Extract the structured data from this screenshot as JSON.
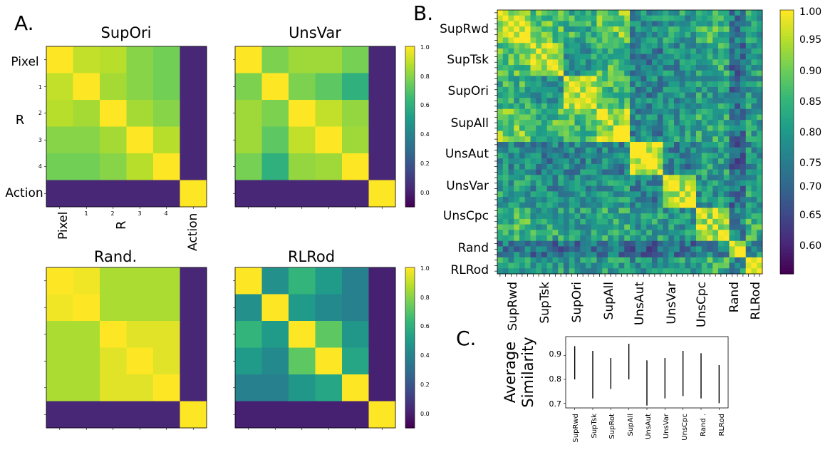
{
  "figure": {
    "panel_a_label": "A.",
    "panel_b_label": "B.",
    "panel_c_label": "C."
  },
  "colors": {
    "viridis": [
      "#440154",
      "#482878",
      "#3e4989",
      "#31688e",
      "#26828e",
      "#1f9e89",
      "#35b779",
      "#6ece58",
      "#b5de2b",
      "#fde725"
    ]
  },
  "chart_data": [
    {
      "id": "supori",
      "type": "heatmap",
      "title": "SupOri",
      "ytick_labels": [
        "Pixel",
        "1",
        "2",
        "3",
        "4",
        "Action"
      ],
      "xtick_labels": [
        "Pixel",
        "1",
        "2",
        "3",
        "4",
        "Action"
      ],
      "ylabel": "R",
      "xlabel": "R",
      "matrix": [
        [
          1.0,
          0.9,
          0.88,
          0.8,
          0.76,
          0.02
        ],
        [
          0.9,
          1.0,
          0.85,
          0.8,
          0.76,
          0.02
        ],
        [
          0.88,
          0.85,
          1.0,
          0.85,
          0.8,
          0.02
        ],
        [
          0.8,
          0.8,
          0.85,
          1.0,
          0.88,
          0.02
        ],
        [
          0.76,
          0.76,
          0.8,
          0.88,
          1.0,
          0.02
        ],
        [
          0.02,
          0.02,
          0.02,
          0.02,
          0.02,
          1.0
        ]
      ],
      "zlim": [
        -0.1,
        1.0
      ]
    },
    {
      "id": "unsvar",
      "type": "heatmap",
      "title": "UnsVar",
      "matrix": [
        [
          1.0,
          0.78,
          0.84,
          0.84,
          0.77,
          0.02
        ],
        [
          0.78,
          1.0,
          0.78,
          0.72,
          0.6,
          0.02
        ],
        [
          0.84,
          0.78,
          1.0,
          0.9,
          0.82,
          0.02
        ],
        [
          0.84,
          0.72,
          0.9,
          1.0,
          0.84,
          0.02
        ],
        [
          0.77,
          0.6,
          0.82,
          0.84,
          1.0,
          0.02
        ],
        [
          0.02,
          0.02,
          0.02,
          0.02,
          0.02,
          1.0
        ]
      ],
      "colorbar_ticks": [
        "1.0",
        "0.8",
        "0.6",
        "0.4",
        "0.2",
        "0.0"
      ],
      "zlim": [
        -0.1,
        1.0
      ]
    },
    {
      "id": "rand",
      "type": "heatmap",
      "title": "Rand.",
      "matrix": [
        [
          1.0,
          0.98,
          0.86,
          0.86,
          0.86,
          0.02
        ],
        [
          0.98,
          1.0,
          0.86,
          0.86,
          0.86,
          0.02
        ],
        [
          0.86,
          0.86,
          1.0,
          0.95,
          0.95,
          0.02
        ],
        [
          0.86,
          0.86,
          0.95,
          1.0,
          0.95,
          0.02
        ],
        [
          0.86,
          0.86,
          0.95,
          0.95,
          1.0,
          0.02
        ],
        [
          0.02,
          0.02,
          0.02,
          0.02,
          0.02,
          1.0
        ]
      ],
      "zlim": [
        -0.1,
        1.0
      ]
    },
    {
      "id": "rlrod",
      "type": "heatmap",
      "title": "RLRod",
      "matrix": [
        [
          1.0,
          0.45,
          0.62,
          0.5,
          0.38,
          0.0
        ],
        [
          0.45,
          1.0,
          0.5,
          0.42,
          0.38,
          0.0
        ],
        [
          0.62,
          0.5,
          1.0,
          0.72,
          0.48,
          0.0
        ],
        [
          0.5,
          0.42,
          0.72,
          1.0,
          0.55,
          0.0
        ],
        [
          0.38,
          0.38,
          0.48,
          0.55,
          1.0,
          0.0
        ],
        [
          0.0,
          0.0,
          0.0,
          0.0,
          0.0,
          1.0
        ]
      ],
      "colorbar_ticks": [
        "1.0",
        "0.8",
        "0.6",
        "0.4",
        "0.2",
        "0.0"
      ],
      "zlim": [
        -0.1,
        1.0
      ]
    },
    {
      "id": "cross",
      "type": "heatmap",
      "title": "",
      "groups": [
        "SupRwd",
        "SupTsk",
        "SupOri",
        "SupAll",
        "UnsAut",
        "UnsVar",
        "UnsCpc",
        "Rand",
        "RLRod"
      ],
      "group_sizes": [
        6,
        6,
        6,
        6,
        6,
        6,
        6,
        3,
        3
      ],
      "group_base": [
        [
          0.95,
          0.88,
          0.84,
          0.9,
          0.77,
          0.8,
          0.85,
          0.74,
          0.82
        ],
        [
          0.88,
          0.95,
          0.8,
          0.86,
          0.75,
          0.77,
          0.82,
          0.72,
          0.8
        ],
        [
          0.84,
          0.8,
          0.96,
          0.86,
          0.76,
          0.78,
          0.8,
          0.73,
          0.79
        ],
        [
          0.9,
          0.86,
          0.86,
          0.95,
          0.76,
          0.79,
          0.83,
          0.73,
          0.81
        ],
        [
          0.77,
          0.75,
          0.76,
          0.76,
          0.98,
          0.75,
          0.8,
          0.7,
          0.78
        ],
        [
          0.8,
          0.77,
          0.78,
          0.79,
          0.75,
          0.97,
          0.79,
          0.72,
          0.8
        ],
        [
          0.85,
          0.82,
          0.8,
          0.83,
          0.8,
          0.79,
          0.95,
          0.76,
          0.84
        ],
        [
          0.74,
          0.72,
          0.73,
          0.73,
          0.7,
          0.72,
          0.76,
          0.98,
          0.78
        ],
        [
          0.82,
          0.8,
          0.79,
          0.81,
          0.78,
          0.8,
          0.84,
          0.78,
          0.98
        ]
      ],
      "zlim": [
        0.555,
        1.0
      ],
      "colorbar_ticks": [
        "1.00",
        "0.95",
        "0.90",
        "0.85",
        "0.80",
        "0.75",
        "0.70",
        "0.65",
        "0.60"
      ]
    },
    {
      "id": "avg",
      "type": "range",
      "ylabel_line1": "Average",
      "ylabel_line2": "Similarity",
      "categories": [
        "SupRwd",
        "SupTsk",
        "SupRot",
        "SupAll",
        "UnsAut",
        "UnsVar",
        "UnsCpc",
        "Rand .",
        "RLRod"
      ],
      "ranges": [
        [
          0.8,
          0.94
        ],
        [
          0.72,
          0.92
        ],
        [
          0.76,
          0.89
        ],
        [
          0.8,
          0.95
        ],
        [
          0.69,
          0.88
        ],
        [
          0.72,
          0.89
        ],
        [
          0.73,
          0.92
        ],
        [
          0.72,
          0.91
        ],
        [
          0.7,
          0.86
        ]
      ],
      "yticks": [
        "0.9",
        "0.8",
        "0.7"
      ],
      "ylim": [
        0.68,
        0.98
      ]
    }
  ]
}
